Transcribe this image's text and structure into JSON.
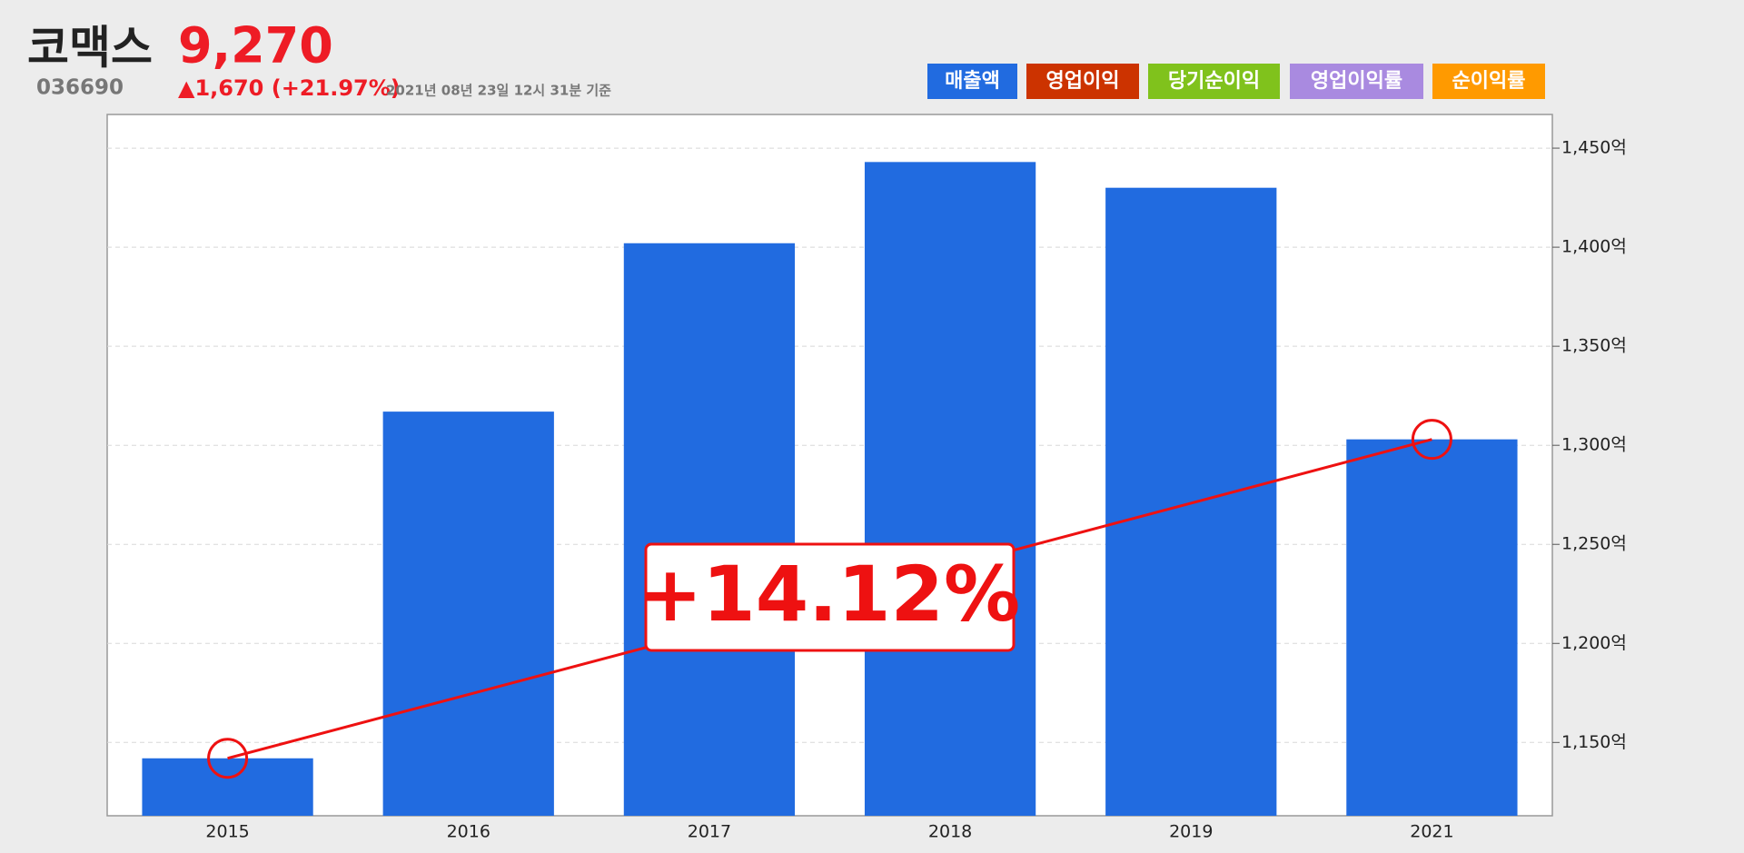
{
  "header": {
    "name": "코맥스",
    "price": "9,270",
    "code": "036690",
    "change": "▲1,670 (+21.97%)",
    "timestamp": "2021년 08년 23일 12시 31분 기준"
  },
  "tabs": [
    {
      "label": "매출액",
      "color": "#216be0"
    },
    {
      "label": "영업이익",
      "color": "#cc3300"
    },
    {
      "label": "당기순이익",
      "color": "#80c21c"
    },
    {
      "label": "영업이익률",
      "color": "#a98ae0"
    },
    {
      "label": "순이익률",
      "color": "#ff9a00"
    }
  ],
  "chart_data": {
    "type": "bar",
    "categories": [
      "2015",
      "2016",
      "2017",
      "2018",
      "2019",
      "2021"
    ],
    "values": [
      1142,
      1317,
      1402,
      1443,
      1430,
      1303
    ],
    "color": "#216be0",
    "ylim": [
      1113,
      1467
    ],
    "yticks": [
      {
        "value": 1150,
        "label": "1,150억"
      },
      {
        "value": 1200,
        "label": "1,200억"
      },
      {
        "value": 1250,
        "label": "1,250억"
      },
      {
        "value": 1300,
        "label": "1,300억"
      },
      {
        "value": 1350,
        "label": "1,350억"
      },
      {
        "value": 1400,
        "label": "1,400억"
      },
      {
        "value": 1450,
        "label": "1,450억"
      }
    ],
    "grid": true,
    "annotation": "+14.12%",
    "annotation_color": "#ee1111"
  }
}
